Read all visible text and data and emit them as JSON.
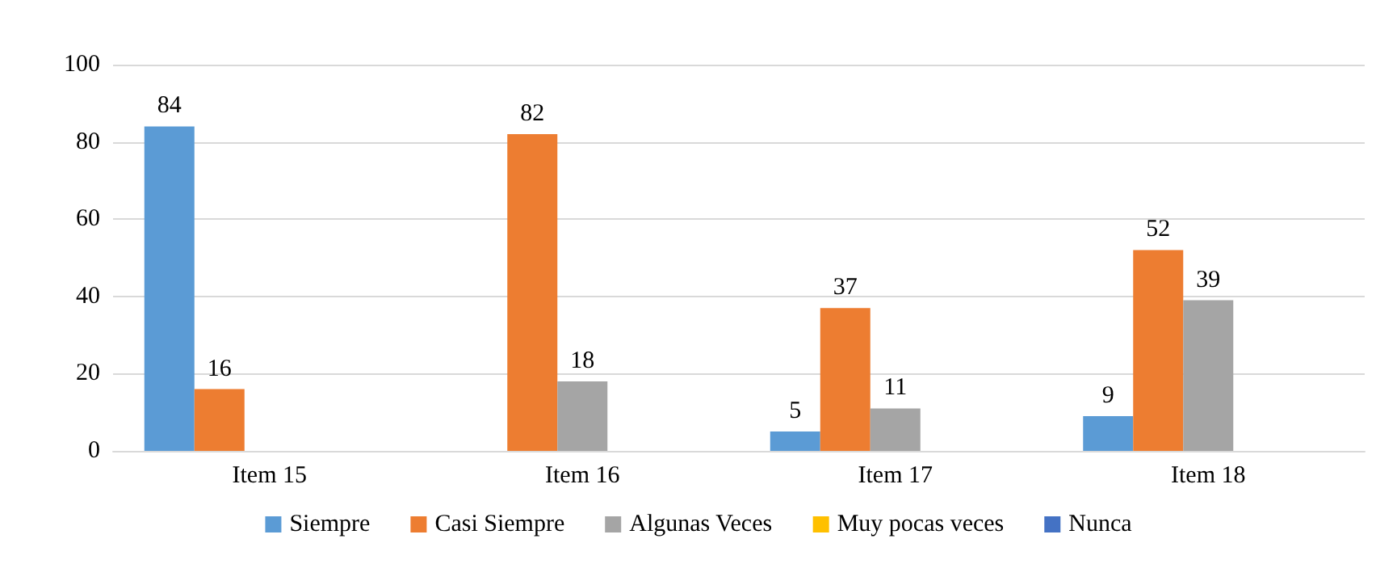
{
  "chart_data": {
    "type": "bar",
    "categories": [
      "Item 15",
      "Item 16",
      "Item 17",
      "Item 18"
    ],
    "series": [
      {
        "name": "Siempre",
        "color": "#5b9bd5",
        "values": [
          84,
          null,
          5,
          9
        ]
      },
      {
        "name": "Casi Siempre",
        "color": "#ed7d31",
        "values": [
          16,
          82,
          37,
          52
        ]
      },
      {
        "name": "Algunas Veces",
        "color": "#a5a5a5",
        "values": [
          null,
          18,
          11,
          39
        ]
      },
      {
        "name": "Muy pocas veces",
        "color": "#ffc000",
        "values": [
          null,
          null,
          null,
          null
        ]
      },
      {
        "name": "Nunca",
        "color": "#4472c4",
        "values": [
          null,
          null,
          null,
          null
        ]
      }
    ],
    "ylim": [
      0,
      100
    ],
    "yticks": [
      0,
      20,
      40,
      60,
      80,
      100
    ],
    "grid": "y",
    "legend": "bottom",
    "data_labels": true
  }
}
